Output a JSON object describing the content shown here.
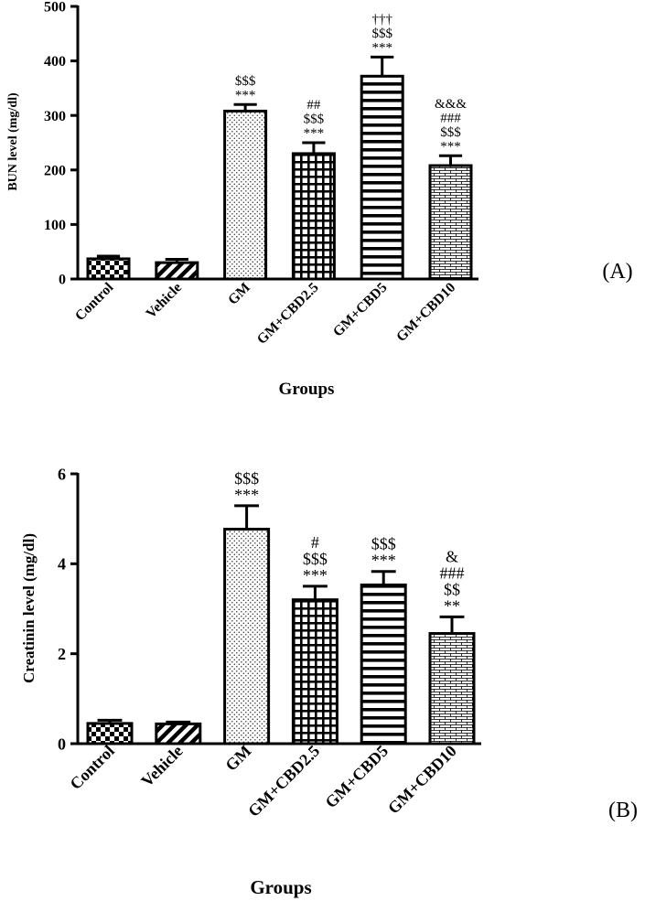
{
  "chart_data": [
    {
      "type": "bar",
      "panel_label": "(A)",
      "ylabel": "BUN level (mg/dl)",
      "xlabel": "Groups",
      "ylim": [
        0,
        500
      ],
      "yticks": [
        0,
        100,
        200,
        300,
        400,
        500
      ],
      "categories": [
        "Control",
        "Vehicle",
        "GM",
        "GM+CBD2.5",
        "GM+CBD5",
        "GM+CBD10"
      ],
      "values": [
        37,
        30,
        308,
        230,
        372,
        208
      ],
      "errors": [
        5,
        6,
        12,
        20,
        35,
        18
      ],
      "patterns": [
        "checker",
        "diagonal",
        "dots",
        "grid",
        "horizontal",
        "brick"
      ],
      "annotations": [
        [],
        [],
        [
          "$$$",
          "***"
        ],
        [
          "##",
          "$$$",
          "***"
        ],
        [
          "†††",
          "$$$",
          "***"
        ],
        [
          "&&&",
          "###",
          "$$$",
          "***"
        ]
      ]
    },
    {
      "type": "bar",
      "panel_label": "(B)",
      "ylabel": "Creatinin level (mg/dl)",
      "xlabel": "Groups",
      "ylim": [
        0,
        6
      ],
      "yticks": [
        0,
        2,
        4,
        6
      ],
      "categories": [
        "Control",
        "Vehicle",
        "GM",
        "GM+CBD2.5",
        "GM+CBD5",
        "GM+CBD10"
      ],
      "values": [
        0.45,
        0.44,
        4.77,
        3.2,
        3.53,
        2.45
      ],
      "errors": [
        0.07,
        0.04,
        0.52,
        0.3,
        0.3,
        0.37
      ],
      "patterns": [
        "checker",
        "diagonal",
        "dots",
        "grid",
        "horizontal",
        "brick"
      ],
      "annotations": [
        [],
        [],
        [
          "$$$",
          "***"
        ],
        [
          "#",
          "$$$",
          "***"
        ],
        [
          "$$$",
          "***"
        ],
        [
          "&",
          "###",
          "$$",
          "**"
        ]
      ]
    }
  ]
}
